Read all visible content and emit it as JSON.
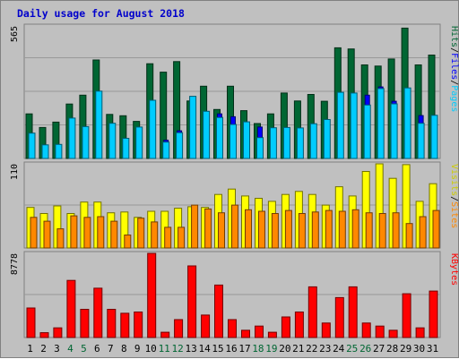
{
  "chart_data": {
    "type": "bar",
    "title": "Daily usage for August 2018",
    "days": [
      "1",
      "2",
      "3",
      "4",
      "5",
      "6",
      "7",
      "8",
      "9",
      "10",
      "11",
      "12",
      "13",
      "14",
      "15",
      "16",
      "17",
      "18",
      "19",
      "20",
      "21",
      "22",
      "23",
      "24",
      "25",
      "26",
      "27",
      "28",
      "29",
      "30",
      "31"
    ],
    "weekend_days": [
      "4",
      "5",
      "11",
      "12",
      "18",
      "19",
      "25",
      "26"
    ],
    "panels": [
      {
        "name": "hits-files-pages",
        "ymax_label": "565",
        "ymax": 565,
        "series": [
          {
            "name": "Hits",
            "color": "#006633",
            "values": [
              190,
              132,
              155,
              232,
              270,
              420,
              188,
              182,
              158,
              404,
              368,
              413,
              245,
              308,
              209,
              308,
              204,
              149,
              190,
              279,
              245,
              273,
              244,
              472,
              467,
              399,
              394,
              424,
              556,
              399,
              441
            ]
          },
          {
            "name": "Files",
            "color": "#0000ff",
            "values": [
              98,
              50,
              52,
              165,
              128,
              210,
              140,
              80,
              125,
              112,
              78,
              118,
              155,
              176,
              190,
              178,
              150,
              134,
              121,
              126,
              128,
              120,
              139,
              180,
              258,
              270,
              305,
              244,
              266,
              183,
              160
            ]
          },
          {
            "name": "Pages",
            "color": "#00ccff",
            "values": [
              108,
              58,
              60,
              172,
              136,
              287,
              150,
              86,
              134,
              248,
              70,
              110,
              265,
              201,
              175,
              145,
              156,
              89,
              131,
              132,
              130,
              148,
              166,
              282,
              279,
              228,
              298,
              233,
              301,
              150,
              184
            ]
          }
        ]
      },
      {
        "name": "visits-sites",
        "ymax_label": "110",
        "ymax": 110,
        "series": [
          {
            "name": "Visits",
            "color": "#ffff00",
            "values": [
              53,
              45,
              55,
              45,
              60,
              60,
              46,
              47,
              40,
              48,
              48,
              52,
              54,
              53,
              70,
              77,
              68,
              65,
              61,
              70,
              74,
              70,
              56,
              80,
              68,
              100,
              110,
              91,
              109,
              61,
              84
            ]
          },
          {
            "name": "Sites",
            "color": "#ff8800",
            "values": [
              40,
              35,
              25,
              42,
              40,
              41,
              35,
              17,
              39,
              34,
              27,
              27,
              56,
              51,
              46,
              56,
              50,
              48,
              45,
              49,
              45,
              47,
              49,
              48,
              50,
              46,
              45,
              46,
              32,
              41,
              49
            ]
          }
        ]
      },
      {
        "name": "kbytes",
        "ymax_label": "8778",
        "ymax": 8778,
        "series": [
          {
            "name": "KBytes",
            "color": "#ff0000",
            "values": [
              3079,
              505,
              1009,
              5959,
              2938,
              5147,
              2938,
              2532,
              2657,
              8778,
              555,
              1866,
              7473,
              2341,
              5468,
              1866,
              757,
              1198,
              555,
              2151,
              2657,
              5283,
              1513,
              4162,
              5283,
              1513,
              1198,
              757,
              4567,
              1009,
              4844
            ]
          }
        ]
      }
    ],
    "legend_sep": "/"
  }
}
